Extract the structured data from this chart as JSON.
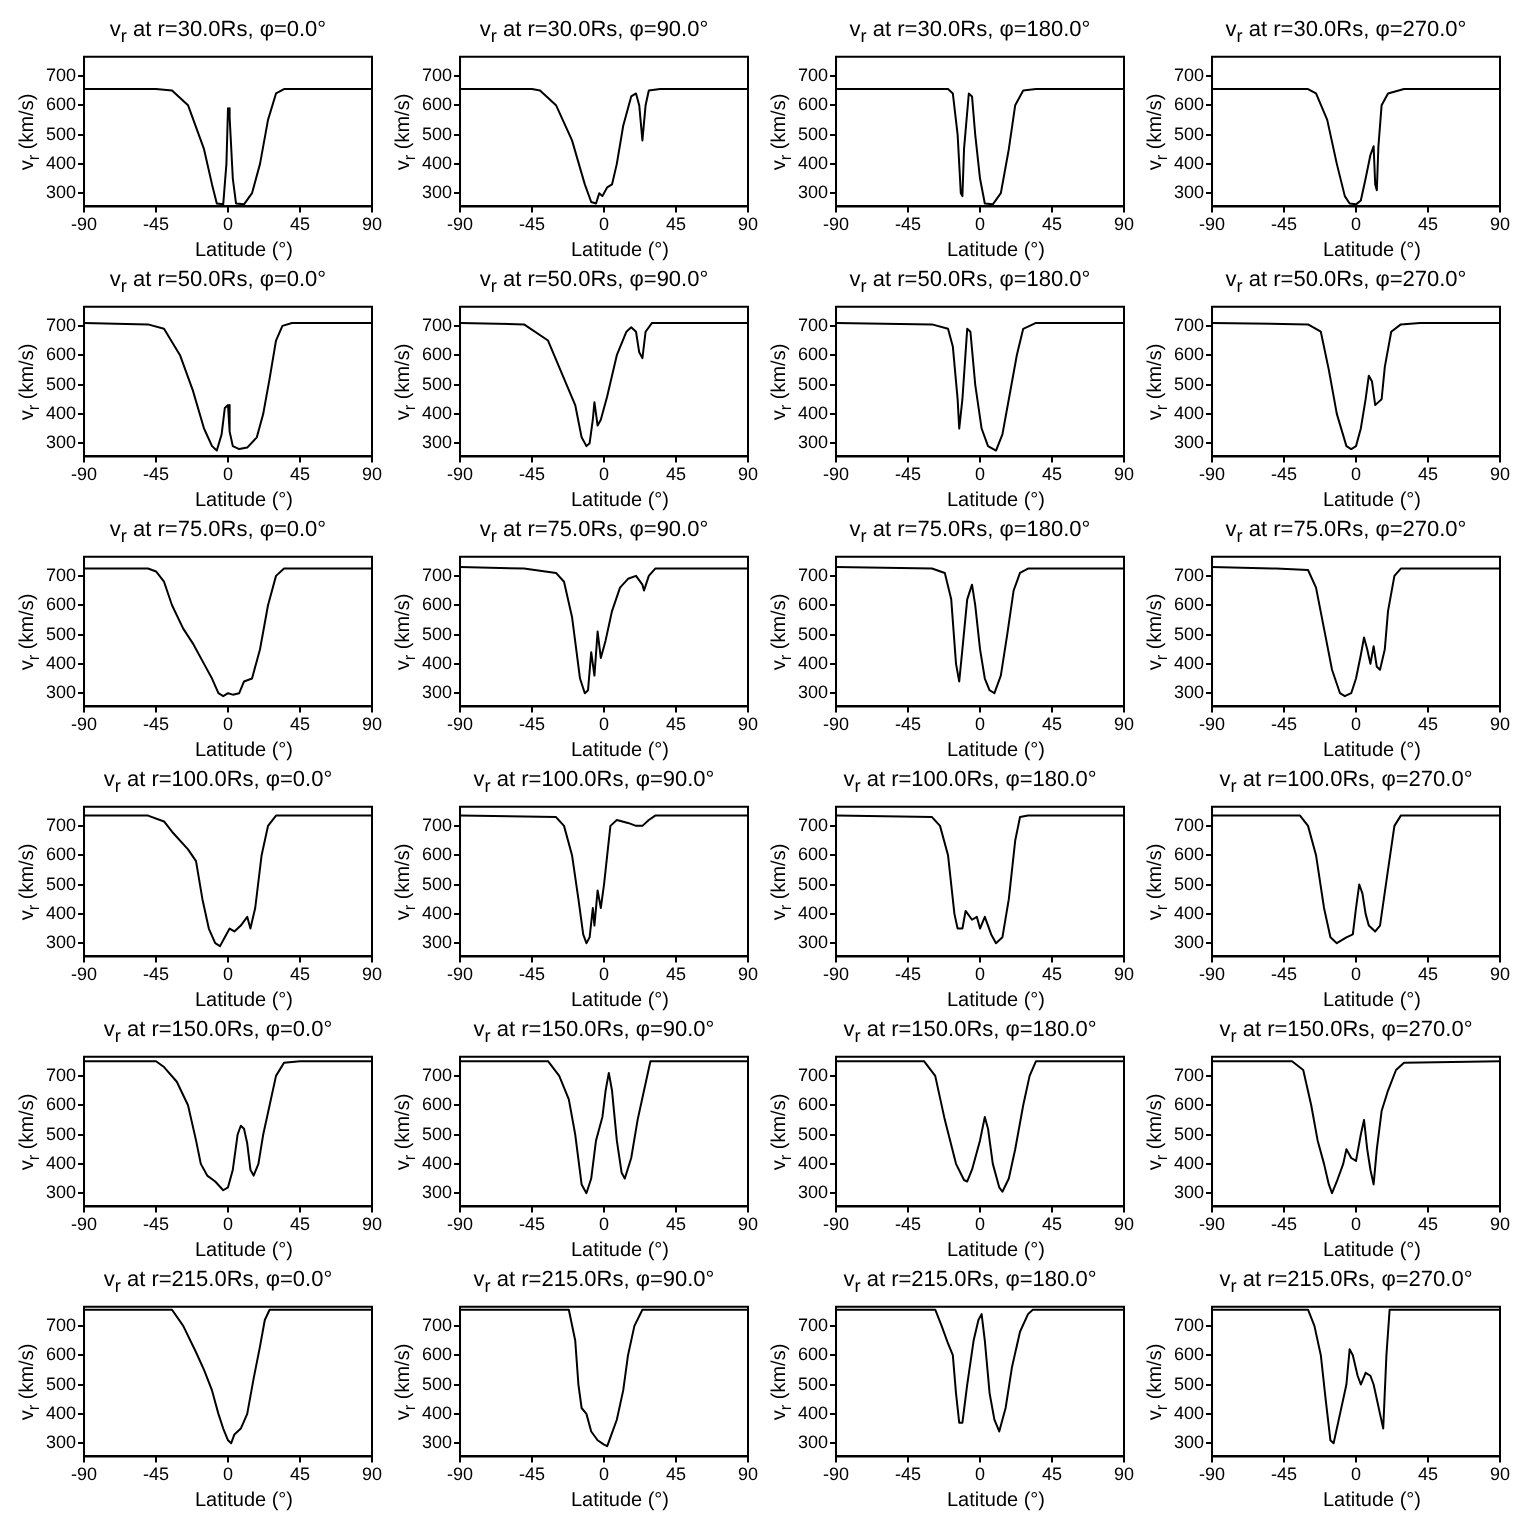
{
  "chart_data": [
    {
      "type": "line",
      "title": "v$_{r}$ at r=30.0Rs, φ=0.0°",
      "xlabel": "Latitude (°)",
      "ylabel": "v$_{r}$ (km/s)",
      "xlim": [
        -90,
        90
      ],
      "xticks": [
        -90,
        -45,
        0,
        45,
        90
      ],
      "ylim": [
        255,
        765
      ],
      "yticks": [
        300,
        400,
        500,
        600,
        700
      ],
      "grid": false,
      "legend": false,
      "series": [
        {
          "color": "#000000",
          "x": [
            -90,
            -45,
            -35,
            -25,
            -15,
            -10,
            -7,
            -3,
            -1,
            0,
            1,
            3,
            5,
            10,
            15,
            20,
            25,
            30,
            35,
            90
          ],
          "values": [
            655,
            655,
            650,
            600,
            450,
            330,
            265,
            262,
            400,
            590,
            560,
            350,
            265,
            262,
            300,
            400,
            550,
            640,
            655,
            655
          ]
        }
      ]
    },
    {
      "type": "line",
      "title": "v$_{r}$ at r=30.0Rs, φ=90.0°",
      "xlabel": "Latitude (°)",
      "ylabel": "v$_{r}$ (km/s)",
      "xlim": [
        -90,
        90
      ],
      "xticks": [
        -90,
        -45,
        0,
        45,
        90
      ],
      "ylim": [
        255,
        765
      ],
      "yticks": [
        300,
        400,
        500,
        600,
        700
      ],
      "grid": false,
      "legend": false,
      "series": [
        {
          "color": "#000000",
          "x": [
            -90,
            -45,
            -40,
            -30,
            -20,
            -12,
            -8,
            -5,
            -3,
            -1,
            2,
            5,
            8,
            12,
            17,
            20,
            22,
            24,
            26,
            28,
            35,
            90
          ],
          "values": [
            655,
            655,
            650,
            600,
            480,
            330,
            270,
            265,
            300,
            290,
            320,
            330,
            400,
            530,
            630,
            640,
            600,
            480,
            600,
            650,
            655,
            655
          ]
        }
      ]
    },
    {
      "type": "line",
      "title": "v$_{r}$ at r=30.0Rs, φ=180.0°",
      "xlabel": "Latitude (°)",
      "ylabel": "v$_{r}$ (km/s)",
      "xlim": [
        -90,
        90
      ],
      "xticks": [
        -90,
        -45,
        0,
        45,
        90
      ],
      "ylim": [
        255,
        765
      ],
      "yticks": [
        300,
        400,
        500,
        600,
        700
      ],
      "grid": false,
      "legend": false,
      "series": [
        {
          "color": "#000000",
          "x": [
            -90,
            -20,
            -17,
            -14,
            -12,
            -11,
            -10,
            -7,
            -5,
            -3,
            0,
            3,
            8,
            13,
            18,
            22,
            27,
            35,
            90
          ],
          "values": [
            655,
            655,
            640,
            500,
            300,
            290,
            450,
            640,
            630,
            500,
            350,
            265,
            262,
            300,
            450,
            600,
            650,
            655,
            655
          ]
        }
      ]
    },
    {
      "type": "line",
      "title": "v$_{r}$ at r=30.0Rs, φ=270.0°",
      "xlabel": "Latitude (°)",
      "ylabel": "v$_{r}$ (km/s)",
      "xlim": [
        -90,
        90
      ],
      "xticks": [
        -90,
        -45,
        0,
        45,
        90
      ],
      "ylim": [
        255,
        765
      ],
      "yticks": [
        300,
        400,
        500,
        600,
        700
      ],
      "grid": false,
      "legend": false,
      "series": [
        {
          "color": "#000000",
          "x": [
            -90,
            -30,
            -25,
            -18,
            -12,
            -7,
            -4,
            0,
            3,
            6,
            9,
            11,
            12,
            13,
            14,
            16,
            20,
            30,
            90
          ],
          "values": [
            655,
            655,
            640,
            550,
            400,
            290,
            265,
            262,
            275,
            350,
            430,
            460,
            330,
            310,
            460,
            600,
            640,
            655,
            655
          ]
        }
      ]
    },
    {
      "type": "line",
      "title": "v$_{r}$ at r=50.0Rs, φ=0.0°",
      "xlabel": "Latitude (°)",
      "ylabel": "v$_{r}$ (km/s)",
      "xlim": [
        -90,
        90
      ],
      "xticks": [
        -90,
        -45,
        0,
        45,
        90
      ],
      "ylim": [
        255,
        765
      ],
      "yticks": [
        300,
        400,
        500,
        600,
        700
      ],
      "grid": false,
      "legend": false,
      "series": [
        {
          "color": "#000000",
          "x": [
            -90,
            -50,
            -40,
            -30,
            -22,
            -15,
            -10,
            -7,
            -4,
            -2,
            0,
            1,
            3,
            7,
            12,
            18,
            22,
            26,
            30,
            34,
            40,
            90
          ],
          "values": [
            710,
            705,
            690,
            600,
            480,
            350,
            290,
            275,
            330,
            420,
            430,
            340,
            290,
            280,
            285,
            320,
            400,
            520,
            650,
            700,
            710,
            710
          ]
        }
      ]
    },
    {
      "type": "line",
      "title": "v$_{r}$ at r=50.0Rs, φ=90.0°",
      "xlabel": "Latitude (°)",
      "ylabel": "v$_{r}$ (km/s)",
      "xlim": [
        -90,
        90
      ],
      "xticks": [
        -90,
        -45,
        0,
        45,
        90
      ],
      "ylim": [
        255,
        765
      ],
      "yticks": [
        300,
        400,
        500,
        600,
        700
      ],
      "grid": false,
      "legend": false,
      "series": [
        {
          "color": "#000000",
          "x": [
            -90,
            -50,
            -35,
            -25,
            -18,
            -14,
            -11,
            -9,
            -7,
            -6,
            -4,
            -2,
            2,
            8,
            14,
            17,
            20,
            22,
            24,
            26,
            30,
            90
          ],
          "values": [
            710,
            705,
            650,
            520,
            430,
            320,
            290,
            300,
            380,
            440,
            360,
            380,
            460,
            600,
            680,
            695,
            680,
            610,
            590,
            680,
            710,
            710
          ]
        }
      ]
    },
    {
      "type": "line",
      "title": "v$_{r}$ at r=50.0Rs, φ=180.0°",
      "xlabel": "Latitude (°)",
      "ylabel": "v$_{r}$ (km/s)",
      "xlim": [
        -90,
        90
      ],
      "xticks": [
        -90,
        -45,
        0,
        45,
        90
      ],
      "ylim": [
        255,
        765
      ],
      "yticks": [
        300,
        400,
        500,
        600,
        700
      ],
      "grid": false,
      "legend": false,
      "series": [
        {
          "color": "#000000",
          "x": [
            -90,
            -30,
            -20,
            -17,
            -14,
            -13,
            -11,
            -8,
            -6,
            -3,
            1,
            5,
            10,
            14,
            18,
            23,
            27,
            35,
            90
          ],
          "values": [
            710,
            705,
            690,
            630,
            450,
            350,
            450,
            690,
            680,
            500,
            350,
            290,
            275,
            330,
            450,
            600,
            690,
            710,
            710
          ]
        }
      ]
    },
    {
      "type": "line",
      "title": "v$_{r}$ at r=50.0Rs, φ=270.0°",
      "xlabel": "Latitude (°)",
      "ylabel": "v$_{r}$ (km/s)",
      "xlim": [
        -90,
        90
      ],
      "xticks": [
        -90,
        -45,
        0,
        45,
        90
      ],
      "ylim": [
        255,
        765
      ],
      "yticks": [
        300,
        400,
        500,
        600,
        700
      ],
      "grid": false,
      "legend": false,
      "series": [
        {
          "color": "#000000",
          "x": [
            -90,
            -30,
            -22,
            -17,
            -12,
            -6,
            -3,
            0,
            3,
            6,
            8,
            10,
            12,
            14,
            16,
            18,
            22,
            28,
            40,
            90
          ],
          "values": [
            710,
            705,
            680,
            550,
            400,
            290,
            280,
            290,
            350,
            450,
            530,
            510,
            430,
            440,
            450,
            560,
            680,
            705,
            710,
            710
          ]
        }
      ]
    },
    {
      "type": "line",
      "title": "v$_{r}$ at r=75.0Rs, φ=0.0°",
      "xlabel": "Latitude (°)",
      "ylabel": "v$_{r}$ (km/s)",
      "xlim": [
        -90,
        90
      ],
      "xticks": [
        -90,
        -45,
        0,
        45,
        90
      ],
      "ylim": [
        255,
        765
      ],
      "yticks": [
        300,
        400,
        500,
        600,
        700
      ],
      "grid": false,
      "legend": false,
      "series": [
        {
          "color": "#000000",
          "x": [
            -90,
            -50,
            -45,
            -40,
            -35,
            -28,
            -22,
            -15,
            -10,
            -6,
            -3,
            0,
            3,
            7,
            10,
            15,
            20,
            25,
            30,
            35,
            90
          ],
          "values": [
            725,
            725,
            715,
            680,
            600,
            520,
            470,
            400,
            350,
            300,
            290,
            300,
            295,
            300,
            340,
            350,
            450,
            600,
            700,
            725,
            725
          ]
        }
      ]
    },
    {
      "type": "line",
      "title": "v$_{r}$ at r=75.0Rs, φ=90.0°",
      "xlabel": "Latitude (°)",
      "ylabel": "v$_{r}$ (km/s)",
      "xlim": [
        -90,
        90
      ],
      "xticks": [
        -90,
        -45,
        0,
        45,
        90
      ],
      "ylim": [
        255,
        765
      ],
      "yticks": [
        300,
        400,
        500,
        600,
        700
      ],
      "grid": false,
      "legend": false,
      "series": [
        {
          "color": "#000000",
          "x": [
            -90,
            -50,
            -30,
            -25,
            -20,
            -15,
            -12,
            -10,
            -8,
            -6,
            -4,
            -2,
            1,
            5,
            10,
            15,
            20,
            24,
            25,
            28,
            32,
            90
          ],
          "values": [
            730,
            725,
            710,
            680,
            560,
            350,
            300,
            310,
            440,
            360,
            510,
            420,
            480,
            580,
            660,
            690,
            700,
            670,
            650,
            700,
            725,
            725
          ]
        }
      ]
    },
    {
      "type": "line",
      "title": "v$_{r}$ at r=75.0Rs, φ=180.0°",
      "xlabel": "Latitude (°)",
      "ylabel": "v$_{r}$ (km/s)",
      "xlim": [
        -90,
        90
      ],
      "xticks": [
        -90,
        -45,
        0,
        45,
        90
      ],
      "ylim": [
        255,
        765
      ],
      "yticks": [
        300,
        400,
        500,
        600,
        700
      ],
      "grid": false,
      "legend": false,
      "series": [
        {
          "color": "#000000",
          "x": [
            -90,
            -30,
            -22,
            -18,
            -15,
            -13,
            -11,
            -8,
            -5,
            -3,
            0,
            3,
            6,
            9,
            13,
            17,
            21,
            25,
            30,
            90
          ],
          "values": [
            730,
            725,
            710,
            620,
            400,
            340,
            450,
            620,
            670,
            600,
            450,
            350,
            310,
            300,
            360,
            500,
            650,
            710,
            725,
            725
          ]
        }
      ]
    },
    {
      "type": "line",
      "title": "v$_{r}$ at r=75.0Rs, φ=270.0°",
      "xlabel": "Latitude (°)",
      "ylabel": "v$_{r}$ (km/s)",
      "xlim": [
        -90,
        90
      ],
      "xticks": [
        -90,
        -45,
        0,
        45,
        90
      ],
      "ylim": [
        255,
        765
      ],
      "yticks": [
        300,
        400,
        500,
        600,
        700
      ],
      "grid": false,
      "legend": false,
      "series": [
        {
          "color": "#000000",
          "x": [
            -90,
            -50,
            -30,
            -25,
            -20,
            -15,
            -10,
            -7,
            -3,
            0,
            3,
            5,
            7,
            9,
            11,
            13,
            15,
            18,
            20,
            24,
            28,
            90
          ],
          "values": [
            730,
            725,
            720,
            660,
            520,
            380,
            300,
            290,
            300,
            350,
            430,
            490,
            450,
            400,
            460,
            390,
            380,
            450,
            580,
            700,
            725,
            725
          ]
        }
      ]
    },
    {
      "type": "line",
      "title": "v$_{r}$ at r=100.0Rs, φ=0.0°",
      "xlabel": "Latitude (°)",
      "ylabel": "v$_{r}$ (km/s)",
      "xlim": [
        -90,
        90
      ],
      "xticks": [
        -90,
        -45,
        0,
        45,
        90
      ],
      "ylim": [
        255,
        765
      ],
      "yticks": [
        300,
        400,
        500,
        600,
        700
      ],
      "grid": false,
      "legend": false,
      "series": [
        {
          "color": "#000000",
          "x": [
            -90,
            -50,
            -40,
            -35,
            -25,
            -20,
            -16,
            -12,
            -8,
            -5,
            -2,
            1,
            4,
            8,
            12,
            14,
            17,
            21,
            25,
            30,
            90
          ],
          "values": [
            735,
            735,
            715,
            680,
            620,
            580,
            450,
            350,
            300,
            290,
            320,
            350,
            340,
            360,
            390,
            350,
            420,
            600,
            700,
            735,
            735
          ]
        }
      ]
    },
    {
      "type": "line",
      "title": "v$_{r}$ at r=100.0Rs, φ=90.0°",
      "xlabel": "Latitude (°)",
      "ylabel": "v$_{r}$ (km/s)",
      "xlim": [
        -90,
        90
      ],
      "xticks": [
        -90,
        -45,
        0,
        45,
        90
      ],
      "ylim": [
        255,
        765
      ],
      "yticks": [
        300,
        400,
        500,
        600,
        700
      ],
      "grid": false,
      "legend": false,
      "series": [
        {
          "color": "#000000",
          "x": [
            -90,
            -30,
            -25,
            -20,
            -16,
            -13,
            -11,
            -9,
            -7,
            -6,
            -4,
            -2,
            0,
            2,
            4,
            8,
            15,
            20,
            24,
            28,
            32,
            90
          ],
          "values": [
            735,
            730,
            700,
            600,
            450,
            330,
            300,
            320,
            420,
            360,
            480,
            420,
            500,
            600,
            700,
            720,
            710,
            700,
            700,
            720,
            735,
            735
          ]
        }
      ]
    },
    {
      "type": "line",
      "title": "v$_{r}$ at r=100.0Rs, φ=180.0°",
      "xlabel": "Latitude (°)",
      "ylabel": "v$_{r}$ (km/s)",
      "xlim": [
        -90,
        90
      ],
      "xticks": [
        -90,
        -45,
        0,
        45,
        90
      ],
      "ylim": [
        255,
        765
      ],
      "yticks": [
        300,
        400,
        500,
        600,
        700
      ],
      "grid": false,
      "legend": false,
      "series": [
        {
          "color": "#000000",
          "x": [
            -90,
            -30,
            -25,
            -20,
            -16,
            -14,
            -11,
            -9,
            -5,
            -2,
            0,
            3,
            7,
            10,
            14,
            18,
            22,
            25,
            30,
            90
          ],
          "values": [
            735,
            730,
            700,
            600,
            400,
            350,
            350,
            410,
            380,
            390,
            350,
            390,
            330,
            300,
            320,
            450,
            650,
            730,
            735,
            735
          ]
        }
      ]
    },
    {
      "type": "line",
      "title": "v$_{r}$ at r=100.0Rs, φ=270.0°",
      "xlabel": "Latitude (°)",
      "ylabel": "v$_{r}$ (km/s)",
      "xlim": [
        -90,
        90
      ],
      "xticks": [
        -90,
        -45,
        0,
        45,
        90
      ],
      "ylim": [
        255,
        765
      ],
      "yticks": [
        300,
        400,
        500,
        600,
        700
      ],
      "grid": false,
      "legend": false,
      "series": [
        {
          "color": "#000000",
          "x": [
            -90,
            -35,
            -30,
            -25,
            -20,
            -16,
            -12,
            -6,
            -2,
            0,
            2,
            4,
            6,
            8,
            12,
            15,
            20,
            24,
            28,
            90
          ],
          "values": [
            735,
            735,
            700,
            600,
            420,
            320,
            300,
            320,
            330,
            420,
            500,
            470,
            400,
            360,
            340,
            360,
            550,
            700,
            735,
            735
          ]
        }
      ]
    },
    {
      "type": "line",
      "title": "v$_{r}$ at r=150.0Rs, φ=0.0°",
      "xlabel": "Latitude (°)",
      "ylabel": "v$_{r}$ (km/s)",
      "xlim": [
        -90,
        90
      ],
      "xticks": [
        -90,
        -45,
        0,
        45,
        90
      ],
      "ylim": [
        255,
        765
      ],
      "yticks": [
        300,
        400,
        500,
        600,
        700
      ],
      "grid": false,
      "legend": false,
      "series": [
        {
          "color": "#000000",
          "x": [
            -90,
            -45,
            -40,
            -32,
            -25,
            -20,
            -17,
            -13,
            -8,
            -3,
            0,
            3,
            6,
            8,
            10,
            12,
            14,
            16,
            19,
            22,
            26,
            30,
            35,
            45,
            90
          ],
          "values": [
            750,
            750,
            730,
            680,
            600,
            480,
            400,
            360,
            340,
            310,
            320,
            380,
            500,
            530,
            520,
            470,
            380,
            360,
            400,
            500,
            600,
            700,
            745,
            750,
            750
          ]
        }
      ]
    },
    {
      "type": "line",
      "title": "v$_{r}$ at r=150.0Rs, φ=90.0°",
      "xlabel": "Latitude (°)",
      "ylabel": "v$_{r}$ (km/s)",
      "xlim": [
        -90,
        90
      ],
      "xticks": [
        -90,
        -45,
        0,
        45,
        90
      ],
      "ylim": [
        255,
        765
      ],
      "yticks": [
        300,
        400,
        500,
        600,
        700
      ],
      "grid": false,
      "legend": false,
      "series": [
        {
          "color": "#000000",
          "x": [
            -90,
            -35,
            -28,
            -22,
            -18,
            -14,
            -11,
            -8,
            -5,
            -3,
            -1,
            1,
            3,
            5,
            8,
            11,
            13,
            17,
            21,
            25,
            29,
            90
          ],
          "values": [
            750,
            750,
            700,
            620,
            500,
            330,
            300,
            350,
            480,
            520,
            560,
            650,
            710,
            650,
            480,
            370,
            350,
            420,
            550,
            650,
            750,
            750
          ]
        }
      ]
    },
    {
      "type": "line",
      "title": "v$_{r}$ at r=150.0Rs, φ=180.0°",
      "xlabel": "Latitude (°)",
      "ylabel": "v$_{r}$ (km/s)",
      "xlim": [
        -90,
        90
      ],
      "xticks": [
        -90,
        -45,
        0,
        45,
        90
      ],
      "ylim": [
        255,
        765
      ],
      "yticks": [
        300,
        400,
        500,
        600,
        700
      ],
      "grid": false,
      "legend": false,
      "series": [
        {
          "color": "#000000",
          "x": [
            -90,
            -35,
            -28,
            -22,
            -15,
            -10,
            -8,
            -5,
            0,
            3,
            5,
            8,
            12,
            14,
            18,
            22,
            27,
            31,
            35,
            90
          ],
          "values": [
            750,
            750,
            700,
            550,
            400,
            345,
            340,
            380,
            480,
            560,
            520,
            400,
            320,
            305,
            350,
            450,
            600,
            700,
            750,
            750
          ]
        }
      ]
    },
    {
      "type": "line",
      "title": "v$_{r}$ at r=150.0Rs, φ=270.0°",
      "xlabel": "Latitude (°)",
      "ylabel": "v$_{r}$ (km/s)",
      "xlim": [
        -90,
        90
      ],
      "xticks": [
        -90,
        -45,
        0,
        45,
        90
      ],
      "ylim": [
        255,
        765
      ],
      "yticks": [
        300,
        400,
        500,
        600,
        700
      ],
      "grid": false,
      "legend": false,
      "series": [
        {
          "color": "#000000",
          "x": [
            -90,
            -40,
            -33,
            -28,
            -24,
            -20,
            -17,
            -15,
            -12,
            -8,
            -6,
            -3,
            0,
            3,
            5,
            7,
            9,
            11,
            13,
            16,
            20,
            25,
            30,
            90
          ],
          "values": [
            750,
            750,
            720,
            600,
            480,
            400,
            330,
            300,
            340,
            400,
            450,
            420,
            410,
            500,
            550,
            450,
            380,
            330,
            450,
            580,
            650,
            720,
            745,
            750
          ]
        }
      ]
    },
    {
      "type": "line",
      "title": "v$_{r}$ at r=215.0Rs, φ=0.0°",
      "xlabel": "Latitude (°)",
      "ylabel": "v$_{r}$ (km/s)",
      "xlim": [
        -90,
        90
      ],
      "xticks": [
        -90,
        -45,
        0,
        45,
        90
      ],
      "ylim": [
        255,
        765
      ],
      "yticks": [
        300,
        400,
        500,
        600,
        700
      ],
      "grid": false,
      "legend": false,
      "series": [
        {
          "color": "#000000",
          "x": [
            -90,
            -35,
            -28,
            -20,
            -15,
            -10,
            -6,
            -3,
            0,
            2,
            4,
            8,
            12,
            16,
            20,
            23,
            26,
            90
          ],
          "values": [
            755,
            755,
            700,
            610,
            550,
            480,
            400,
            350,
            310,
            300,
            330,
            350,
            400,
            520,
            630,
            720,
            755,
            755
          ]
        }
      ]
    },
    {
      "type": "line",
      "title": "v$_{r}$ at r=215.0Rs, φ=90.0°",
      "xlabel": "Latitude (°)",
      "ylabel": "v$_{r}$ (km/s)",
      "xlim": [
        -90,
        90
      ],
      "xticks": [
        -90,
        -45,
        0,
        45,
        90
      ],
      "ylim": [
        255,
        765
      ],
      "yticks": [
        300,
        400,
        500,
        600,
        700
      ],
      "grid": false,
      "legend": false,
      "series": [
        {
          "color": "#000000",
          "x": [
            -90,
            -22,
            -18,
            -16,
            -14,
            -11,
            -8,
            -4,
            0,
            2,
            4,
            8,
            12,
            15,
            19,
            24,
            90
          ],
          "values": [
            755,
            755,
            650,
            500,
            420,
            400,
            340,
            310,
            295,
            290,
            320,
            380,
            480,
            600,
            700,
            755,
            755
          ]
        }
      ]
    },
    {
      "type": "line",
      "title": "v$_{r}$ at r=215.0Rs, φ=180.0°",
      "xlabel": "Latitude (°)",
      "ylabel": "v$_{r}$ (km/s)",
      "xlim": [
        -90,
        90
      ],
      "xticks": [
        -90,
        -45,
        0,
        45,
        90
      ],
      "ylim": [
        255,
        765
      ],
      "yticks": [
        300,
        400,
        500,
        600,
        700
      ],
      "grid": false,
      "legend": false,
      "series": [
        {
          "color": "#000000",
          "x": [
            -90,
            -28,
            -24,
            -20,
            -17,
            -15,
            -13,
            -11,
            -8,
            -4,
            -1,
            1,
            3,
            6,
            9,
            12,
            16,
            20,
            25,
            30,
            33,
            90
          ],
          "values": [
            755,
            755,
            700,
            640,
            600,
            470,
            370,
            370,
            500,
            650,
            720,
            740,
            650,
            470,
            380,
            340,
            420,
            560,
            680,
            740,
            755,
            755
          ]
        }
      ]
    },
    {
      "type": "line",
      "title": "v$_{r}$ at r=215.0Rs, φ=270.0°",
      "xlabel": "Latitude (°)",
      "ylabel": "v$_{r}$ (km/s)",
      "xlim": [
        -90,
        90
      ],
      "xticks": [
        -90,
        -45,
        0,
        45,
        90
      ],
      "ylim": [
        255,
        765
      ],
      "yticks": [
        300,
        400,
        500,
        600,
        700
      ],
      "grid": false,
      "legend": false,
      "series": [
        {
          "color": "#000000",
          "x": [
            -90,
            -30,
            -26,
            -22,
            -19,
            -16,
            -14,
            -10,
            -6,
            -4,
            -2,
            1,
            3,
            6,
            9,
            11,
            15,
            17,
            19,
            21,
            90
          ],
          "values": [
            755,
            755,
            700,
            600,
            450,
            310,
            300,
            400,
            500,
            620,
            600,
            530,
            500,
            540,
            530,
            500,
            400,
            350,
            600,
            755,
            755
          ]
        }
      ]
    }
  ]
}
